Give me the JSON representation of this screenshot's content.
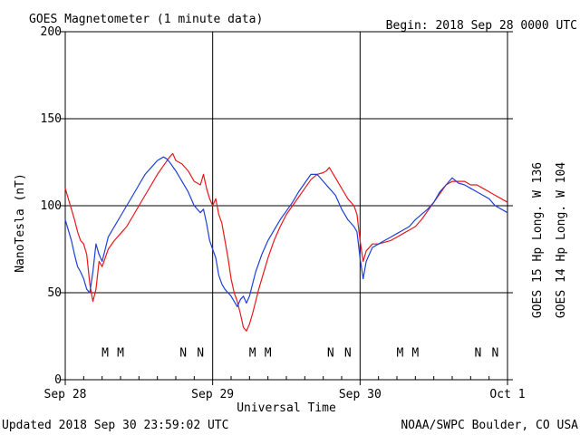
{
  "header": {
    "title": "GOES Magnetometer (1 minute data)",
    "begin": "Begin:  2018 Sep 28 0000 UTC"
  },
  "footer": {
    "updated": "Updated 2018 Sep 30 23:59:02 UTC",
    "source": "NOAA/SWPC Boulder, CO USA"
  },
  "chart_data": {
    "type": "line",
    "title": "GOES Magnetometer (1 minute data)",
    "xlabel": "Universal Time",
    "ylabel": "NanoTesla (nT)",
    "x_unit": "hours since 2018 Sep 28 0000 UTC",
    "xlim": [
      0,
      72
    ],
    "ylim": [
      0,
      200
    ],
    "y_ticks": [
      0,
      50,
      100,
      150,
      200
    ],
    "x_ticks": [
      {
        "x": 0,
        "label": "Sep 28"
      },
      {
        "x": 24,
        "label": "Sep 29"
      },
      {
        "x": 48,
        "label": "Sep 30"
      },
      {
        "x": 72,
        "label": "Oct 1"
      }
    ],
    "grid": true,
    "legend_position": "right-vertical",
    "series": [
      {
        "name": "GOES 15 Hp  Long. W 136",
        "color": "#e8171c",
        "points": [
          [
            0,
            110
          ],
          [
            0.5,
            104
          ],
          [
            1,
            98
          ],
          [
            1.5,
            92
          ],
          [
            2,
            85
          ],
          [
            2.5,
            80
          ],
          [
            3,
            78
          ],
          [
            3.5,
            72
          ],
          [
            4,
            55
          ],
          [
            4.5,
            45
          ],
          [
            5,
            52
          ],
          [
            5.5,
            68
          ],
          [
            6,
            65
          ],
          [
            6.5,
            70
          ],
          [
            7,
            75
          ],
          [
            8,
            80
          ],
          [
            9,
            84
          ],
          [
            10,
            88
          ],
          [
            11,
            94
          ],
          [
            12,
            100
          ],
          [
            13,
            106
          ],
          [
            14,
            112
          ],
          [
            15,
            118
          ],
          [
            16,
            123
          ],
          [
            17,
            128
          ],
          [
            17.5,
            130
          ],
          [
            18,
            126
          ],
          [
            19,
            124
          ],
          [
            20,
            120
          ],
          [
            21,
            114
          ],
          [
            22,
            112
          ],
          [
            22.5,
            118
          ],
          [
            23,
            110
          ],
          [
            23.5,
            104
          ],
          [
            24,
            100
          ],
          [
            24.5,
            104
          ],
          [
            25,
            95
          ],
          [
            25.5,
            90
          ],
          [
            26,
            80
          ],
          [
            26.5,
            70
          ],
          [
            27,
            58
          ],
          [
            27.5,
            50
          ],
          [
            28,
            45
          ],
          [
            28.5,
            38
          ],
          [
            29,
            30
          ],
          [
            29.5,
            28
          ],
          [
            30,
            32
          ],
          [
            30.5,
            38
          ],
          [
            31,
            45
          ],
          [
            31.5,
            52
          ],
          [
            32,
            58
          ],
          [
            33,
            70
          ],
          [
            34,
            80
          ],
          [
            35,
            88
          ],
          [
            36,
            95
          ],
          [
            37,
            100
          ],
          [
            38,
            105
          ],
          [
            39,
            110
          ],
          [
            40,
            115
          ],
          [
            41,
            118
          ],
          [
            42,
            119
          ],
          [
            42.5,
            120
          ],
          [
            43,
            122
          ],
          [
            44,
            116
          ],
          [
            45,
            110
          ],
          [
            46,
            104
          ],
          [
            47,
            100
          ],
          [
            47.5,
            95
          ],
          [
            48,
            80
          ],
          [
            48.5,
            68
          ],
          [
            49,
            74
          ],
          [
            50,
            78
          ],
          [
            51,
            78
          ],
          [
            52,
            79
          ],
          [
            53,
            80
          ],
          [
            54,
            82
          ],
          [
            55,
            84
          ],
          [
            56,
            86
          ],
          [
            57,
            88
          ],
          [
            58,
            92
          ],
          [
            59,
            97
          ],
          [
            60,
            102
          ],
          [
            61,
            107
          ],
          [
            62,
            112
          ],
          [
            63,
            114
          ],
          [
            64,
            114
          ],
          [
            65,
            114
          ],
          [
            66,
            112
          ],
          [
            67,
            112
          ],
          [
            68,
            110
          ],
          [
            69,
            108
          ],
          [
            70,
            106
          ],
          [
            71,
            104
          ],
          [
            72,
            102
          ]
        ]
      },
      {
        "name": "GOES 14 Hp  Long. W 104",
        "color": "#1f3fd6",
        "points": [
          [
            0,
            92
          ],
          [
            0.5,
            86
          ],
          [
            1,
            80
          ],
          [
            1.5,
            72
          ],
          [
            2,
            65
          ],
          [
            2.5,
            62
          ],
          [
            3,
            58
          ],
          [
            3.5,
            52
          ],
          [
            4,
            50
          ],
          [
            4.5,
            62
          ],
          [
            5,
            78
          ],
          [
            5.5,
            72
          ],
          [
            6,
            68
          ],
          [
            6.5,
            75
          ],
          [
            7,
            82
          ],
          [
            8,
            88
          ],
          [
            9,
            94
          ],
          [
            10,
            100
          ],
          [
            11,
            106
          ],
          [
            12,
            112
          ],
          [
            13,
            118
          ],
          [
            14,
            122
          ],
          [
            15,
            126
          ],
          [
            16,
            128
          ],
          [
            16.5,
            127
          ],
          [
            17,
            125
          ],
          [
            18,
            120
          ],
          [
            19,
            114
          ],
          [
            20,
            108
          ],
          [
            21,
            100
          ],
          [
            22,
            96
          ],
          [
            22.5,
            98
          ],
          [
            23,
            90
          ],
          [
            23.5,
            80
          ],
          [
            24,
            75
          ],
          [
            24.5,
            70
          ],
          [
            25,
            60
          ],
          [
            25.5,
            55
          ],
          [
            26,
            52
          ],
          [
            26.5,
            50
          ],
          [
            27,
            48
          ],
          [
            27.5,
            45
          ],
          [
            28,
            42
          ],
          [
            28.5,
            46
          ],
          [
            29,
            48
          ],
          [
            29.5,
            44
          ],
          [
            30,
            48
          ],
          [
            30.5,
            55
          ],
          [
            31,
            62
          ],
          [
            32,
            72
          ],
          [
            33,
            80
          ],
          [
            34,
            86
          ],
          [
            35,
            92
          ],
          [
            36,
            97
          ],
          [
            37,
            102
          ],
          [
            38,
            108
          ],
          [
            39,
            113
          ],
          [
            40,
            118
          ],
          [
            41,
            118
          ],
          [
            42,
            114
          ],
          [
            43,
            110
          ],
          [
            44,
            106
          ],
          [
            45,
            98
          ],
          [
            46,
            92
          ],
          [
            47,
            88
          ],
          [
            47.5,
            85
          ],
          [
            48,
            70
          ],
          [
            48.5,
            58
          ],
          [
            49,
            68
          ],
          [
            50,
            76
          ],
          [
            51,
            78
          ],
          [
            52,
            80
          ],
          [
            53,
            82
          ],
          [
            54,
            84
          ],
          [
            55,
            86
          ],
          [
            56,
            88
          ],
          [
            57,
            92
          ],
          [
            58,
            95
          ],
          [
            59,
            98
          ],
          [
            60,
            102
          ],
          [
            61,
            108
          ],
          [
            62,
            112
          ],
          [
            63,
            116
          ],
          [
            64,
            113
          ],
          [
            65,
            112
          ],
          [
            66,
            110
          ],
          [
            67,
            108
          ],
          [
            68,
            106
          ],
          [
            69,
            104
          ],
          [
            70,
            100
          ],
          [
            71,
            98
          ],
          [
            72,
            96
          ]
        ]
      }
    ],
    "markers": [
      {
        "label": "M",
        "x": 6.5,
        "color": "#1f3fd6"
      },
      {
        "label": "M",
        "x": 9.0,
        "color": "#e8171c"
      },
      {
        "label": "N",
        "x": 19.2,
        "color": "#1f3fd6"
      },
      {
        "label": "N",
        "x": 22.0,
        "color": "#e8171c"
      },
      {
        "label": "M",
        "x": 30.5,
        "color": "#1f3fd6"
      },
      {
        "label": "M",
        "x": 33.0,
        "color": "#e8171c"
      },
      {
        "label": "N",
        "x": 43.2,
        "color": "#1f3fd6"
      },
      {
        "label": "N",
        "x": 46.0,
        "color": "#e8171c"
      },
      {
        "label": "M",
        "x": 54.5,
        "color": "#1f3fd6"
      },
      {
        "label": "M",
        "x": 57.0,
        "color": "#e8171c"
      },
      {
        "label": "N",
        "x": 67.2,
        "color": "#1f3fd6"
      },
      {
        "label": "N",
        "x": 70.0,
        "color": "#e8171c"
      }
    ],
    "marker_y": 16
  }
}
